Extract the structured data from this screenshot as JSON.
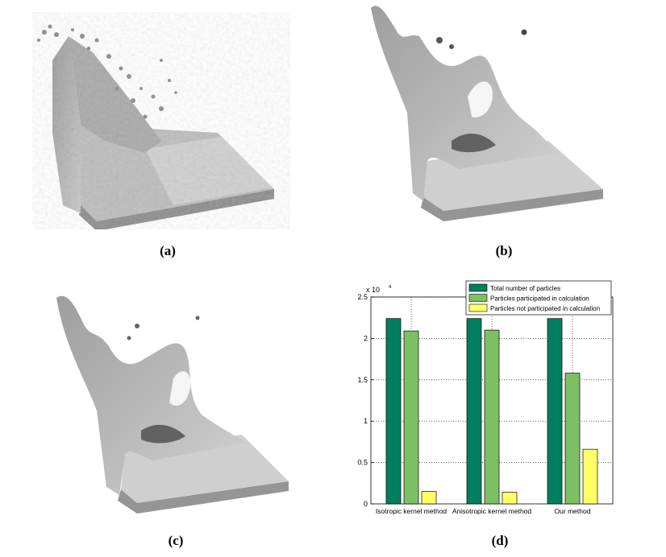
{
  "figure": {
    "captions": [
      "(a)",
      "(b)",
      "(c)",
      "(d)"
    ]
  },
  "chart_data": {
    "type": "bar",
    "categories": [
      "Isotropic kernel method",
      "Anisotropic kernel method",
      "Our method"
    ],
    "series": [
      {
        "name": "Total number of particles",
        "values": [
          2.24,
          2.24,
          2.24
        ],
        "color": "#007f5f"
      },
      {
        "name": "Particles participated in calculation",
        "values": [
          2.09,
          2.1,
          1.58
        ],
        "color": "#7fbf63"
      },
      {
        "name": "Particles not participated in calculation",
        "values": [
          0.15,
          0.14,
          0.66
        ],
        "color": "#ffff66"
      }
    ],
    "ylim": [
      0,
      2.5
    ],
    "yticks": [
      0,
      0.5,
      1,
      1.5,
      2,
      2.5
    ],
    "ytick_labels": [
      "0",
      "0.5",
      "1",
      "1.5",
      "2",
      "2.5"
    ],
    "y_multiplier": "x 10",
    "y_multiplier_exp": "4",
    "grid": true,
    "legend_position": "top-right"
  }
}
